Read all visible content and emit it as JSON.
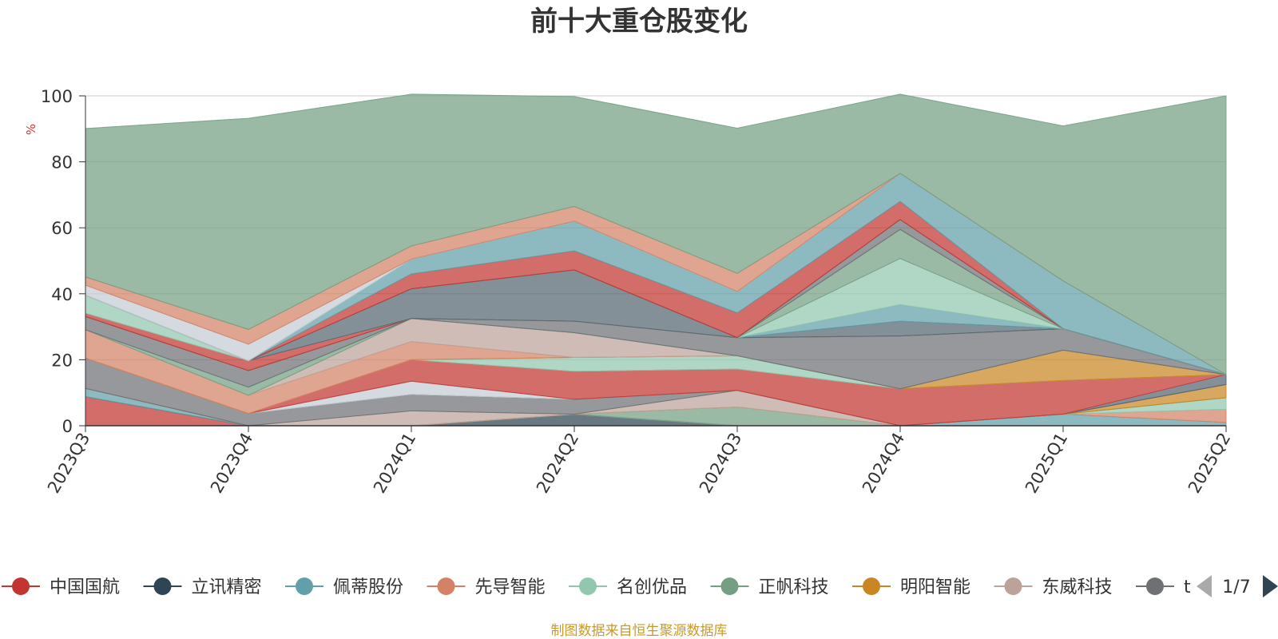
{
  "chart_data": {
    "type": "area",
    "title": "前十大重仓股变化",
    "ylabel": "%",
    "x": [
      "2023Q3",
      "2023Q4",
      "2024Q1",
      "2024Q2",
      "2024Q3",
      "2024Q4",
      "2025Q1",
      "2025Q2"
    ],
    "ylim": [
      0,
      100
    ],
    "yticks": [
      "0",
      "20",
      "40",
      "60",
      "80",
      "100"
    ],
    "grid": true,
    "legend_position": "bottom",
    "series": [
      {
        "name": "中国国航",
        "color": "#c23531",
        "values": [
          8.8,
          0,
          0,
          0,
          0,
          0,
          0,
          0
        ]
      },
      {
        "name": "立讯精密",
        "color": "#2f4554",
        "values": [
          0,
          0,
          0,
          3.5,
          0,
          0,
          0,
          0
        ]
      },
      {
        "name": "佩蒂股份",
        "color": "#61a0a8",
        "values": [
          2.5,
          0,
          0,
          0,
          0,
          0,
          3.5,
          1.0
        ]
      },
      {
        "name": "先导智能",
        "color": "#d48265",
        "values": [
          0,
          0,
          0,
          0,
          0,
          0,
          0,
          4.0
        ]
      },
      {
        "name": "名创优品",
        "color": "#91c7ae",
        "values": [
          0,
          0,
          0,
          0,
          0,
          0,
          0,
          3.5
        ]
      },
      {
        "name": "正帆科技",
        "color": "#749f83",
        "values": [
          0,
          0,
          0,
          0,
          5.7,
          0,
          0,
          0
        ]
      },
      {
        "name": "明阳智能",
        "color": "#ca8622",
        "values": [
          0,
          0,
          0,
          0,
          0,
          0,
          0,
          4.0
        ]
      },
      {
        "name": "东威科技",
        "color": "#bda29a",
        "values": [
          0,
          0,
          4.5,
          0,
          5.0,
          0,
          0,
          0
        ]
      },
      {
        "name": "",
        "color": "#6e7074",
        "values": [
          9.2,
          3.7,
          5.0,
          4.5,
          0,
          0,
          0,
          0
        ]
      },
      {
        "name": "",
        "color": "#546570",
        "values": [
          0,
          0,
          0,
          0,
          0,
          0,
          0,
          3.0
        ]
      },
      {
        "name": "",
        "color": "#c4ccd3",
        "values": [
          0,
          0,
          4.0,
          0,
          0,
          0,
          0,
          0
        ]
      },
      {
        "name": "",
        "color": "#c23531",
        "values": [
          0,
          0,
          6.5,
          8.5,
          6.5,
          11.2,
          10.2,
          0
        ]
      },
      {
        "name": "",
        "color": "#91c7ae",
        "values": [
          0,
          0,
          0,
          4.2,
          4.0,
          0,
          0,
          0
        ]
      },
      {
        "name": "",
        "color": "#ca8622",
        "values": [
          0,
          0,
          0,
          0,
          0,
          0,
          9.2,
          0
        ]
      },
      {
        "name": "",
        "color": "#d48265",
        "values": [
          8.6,
          5.5,
          5.5,
          0,
          0,
          0,
          0,
          0
        ]
      },
      {
        "name": "",
        "color": "#bda29a",
        "values": [
          0,
          0,
          7.0,
          7.5,
          0,
          0,
          0,
          0
        ]
      },
      {
        "name": "",
        "color": "#749f83",
        "values": [
          0,
          2.5,
          0,
          0,
          0,
          0,
          0,
          0
        ]
      },
      {
        "name": "",
        "color": "#6e7074",
        "values": [
          4.0,
          5.0,
          0,
          3.5,
          5.5,
          16.0,
          6.5,
          0
        ]
      },
      {
        "name": "",
        "color": "#c23531",
        "values": [
          1.0,
          3.0,
          0,
          0,
          0,
          0,
          0,
          0
        ]
      },
      {
        "name": "",
        "color": "#91c7ae",
        "values": [
          5.5,
          0,
          0,
          0,
          0,
          0,
          0,
          0
        ]
      },
      {
        "name": "",
        "color": "#546570",
        "values": [
          0,
          0,
          9.0,
          15.5,
          0,
          4.5,
          0,
          0
        ]
      },
      {
        "name": "",
        "color": "#61a0a8",
        "values": [
          0,
          0,
          0,
          0,
          0,
          5.0,
          0,
          0
        ]
      },
      {
        "name": "",
        "color": "#91c7ae",
        "values": [
          0,
          0,
          0,
          0,
          0,
          14.0,
          0,
          0
        ]
      },
      {
        "name": "",
        "color": "#749f83",
        "values": [
          0,
          0,
          0,
          0,
          0,
          8.8,
          0,
          0
        ]
      },
      {
        "name": "",
        "color": "#6e7074",
        "values": [
          0,
          0,
          0,
          0,
          0,
          3.0,
          0,
          0
        ]
      },
      {
        "name": "",
        "color": "#c23531",
        "values": [
          0,
          0,
          4.5,
          5.8,
          7.5,
          5.5,
          0,
          0
        ]
      },
      {
        "name": "",
        "color": "#61a0a8",
        "values": [
          0,
          0,
          4.5,
          9.0,
          6.5,
          8.5,
          14.5,
          0
        ]
      },
      {
        "name": "",
        "color": "#c4ccd3",
        "values": [
          3.0,
          5.0,
          0,
          0,
          0,
          0,
          0,
          0
        ]
      },
      {
        "name": "",
        "color": "#d48265",
        "values": [
          2.5,
          4.5,
          4.0,
          4.5,
          5.5,
          0,
          0,
          0
        ]
      },
      {
        "name": "",
        "color": "#749f83",
        "values": [
          45.0,
          64.0,
          46.0,
          33.3,
          44.0,
          24.0,
          47.0,
          84.5
        ]
      }
    ]
  },
  "legend": {
    "items": [
      {
        "label": "中国国航",
        "color": "#c23531"
      },
      {
        "label": "立讯精密",
        "color": "#2f4554"
      },
      {
        "label": "佩蒂股份",
        "color": "#61a0a8"
      },
      {
        "label": "先导智能",
        "color": "#d48265"
      },
      {
        "label": "名创优品",
        "color": "#91c7ae"
      },
      {
        "label": "正帆科技",
        "color": "#749f83"
      },
      {
        "label": "明阳智能",
        "color": "#ca8622"
      },
      {
        "label": "东威科技",
        "color": "#bda29a"
      }
    ],
    "truncated_color": "#6e7074",
    "truncated_label": "t",
    "page": "1/7"
  },
  "footer": "制图数据来自恒生聚源数据库"
}
